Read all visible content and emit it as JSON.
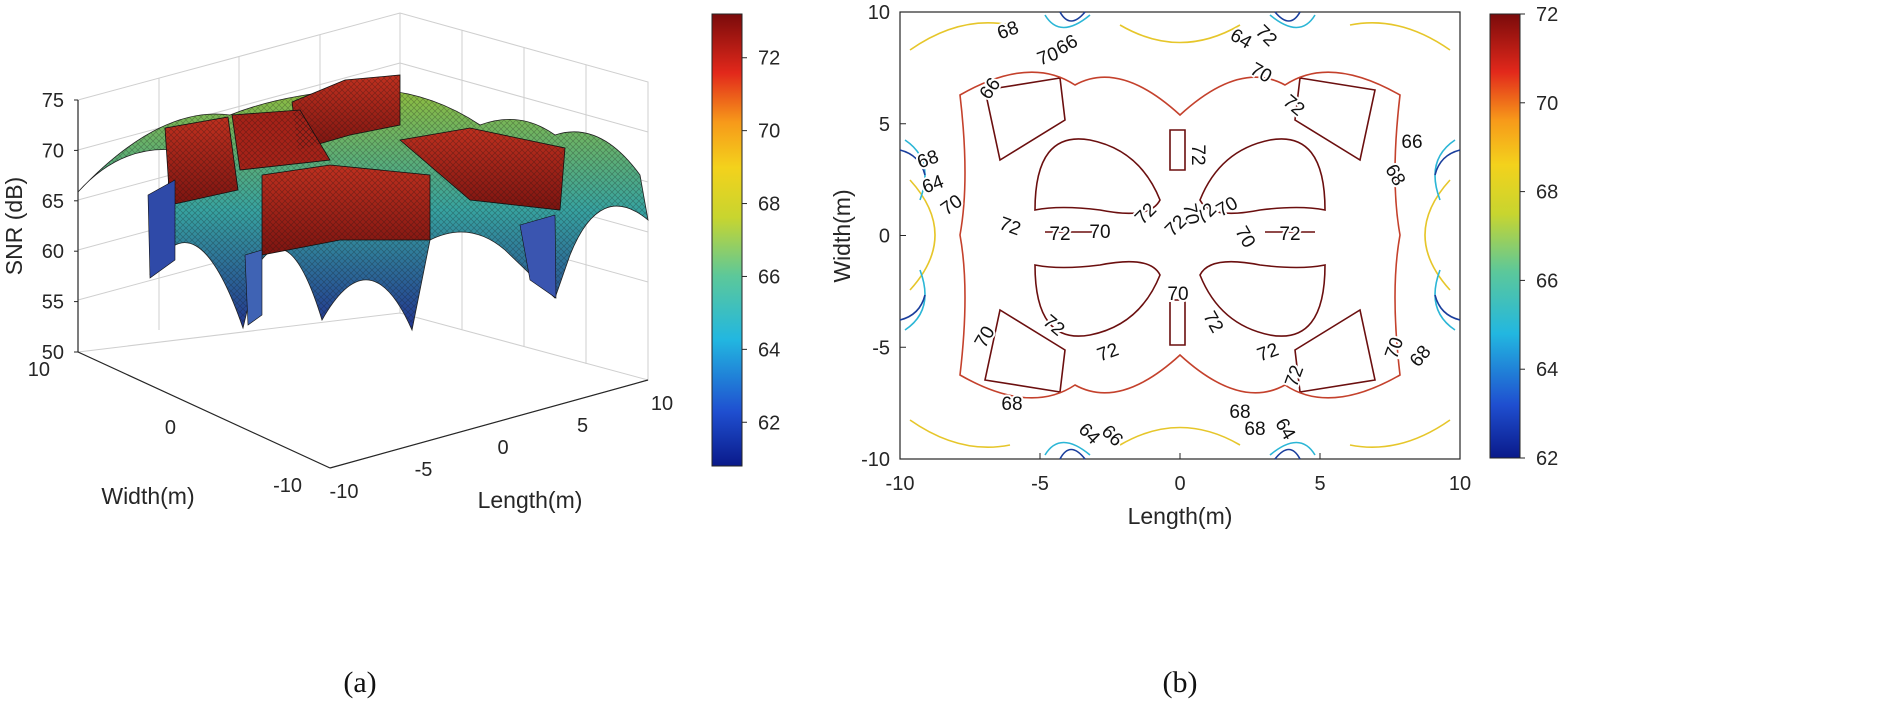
{
  "chart_data": [
    {
      "type": "surface",
      "panel_label": "(a)",
      "xlabel": "Length(m)",
      "ylabel": "Width(m)",
      "zlabel": "SNR (dB)",
      "xlim": [
        -10,
        10
      ],
      "ylim": [
        -10,
        10
      ],
      "zlim": [
        50,
        75
      ],
      "x_ticks": [
        "-10",
        "-5",
        "0",
        "5",
        "10"
      ],
      "y_ticks": [
        "-10",
        "0",
        "10"
      ],
      "z_ticks": [
        "50",
        "55",
        "60",
        "65",
        "70",
        "75"
      ],
      "peak_regions_dB": [
        72.5,
        72.5,
        72.5,
        72.5,
        73.0
      ],
      "edge_value_dB": 64,
      "min_value_dB": 56,
      "colorbar": {
        "range": [
          60.8,
          73.2
        ],
        "ticks": [
          "62",
          "64",
          "66",
          "68",
          "70",
          "72"
        ]
      }
    },
    {
      "type": "contour",
      "panel_label": "(b)",
      "xlabel": "Length(m)",
      "ylabel": "Width(m)",
      "xlim": [
        -10,
        10
      ],
      "ylim": [
        -10,
        10
      ],
      "x_ticks": [
        "-10",
        "-5",
        "0",
        "5",
        "10"
      ],
      "y_ticks": [
        "-10",
        "-5",
        "0",
        "5",
        "10"
      ],
      "levels": [
        62,
        64,
        66,
        68,
        70,
        72
      ],
      "contour_labels": [
        "68",
        "70",
        "66",
        "64",
        "72",
        "70",
        "72",
        "66",
        "64",
        "68",
        "70",
        "72",
        "72",
        "70",
        "72",
        "72",
        "72",
        "70",
        "72",
        "70",
        "72",
        "70",
        "70",
        "72",
        "72",
        "72",
        "72",
        "72",
        "70",
        "68",
        "68",
        "68",
        "66",
        "64",
        "70",
        "68",
        "64",
        "66",
        "68"
      ],
      "colorbar": {
        "range": [
          62,
          72
        ],
        "ticks": [
          "62",
          "64",
          "66",
          "68",
          "70",
          "72"
        ]
      }
    }
  ],
  "colors": {
    "axis": "#262626",
    "grid": "#e2e2e2"
  }
}
